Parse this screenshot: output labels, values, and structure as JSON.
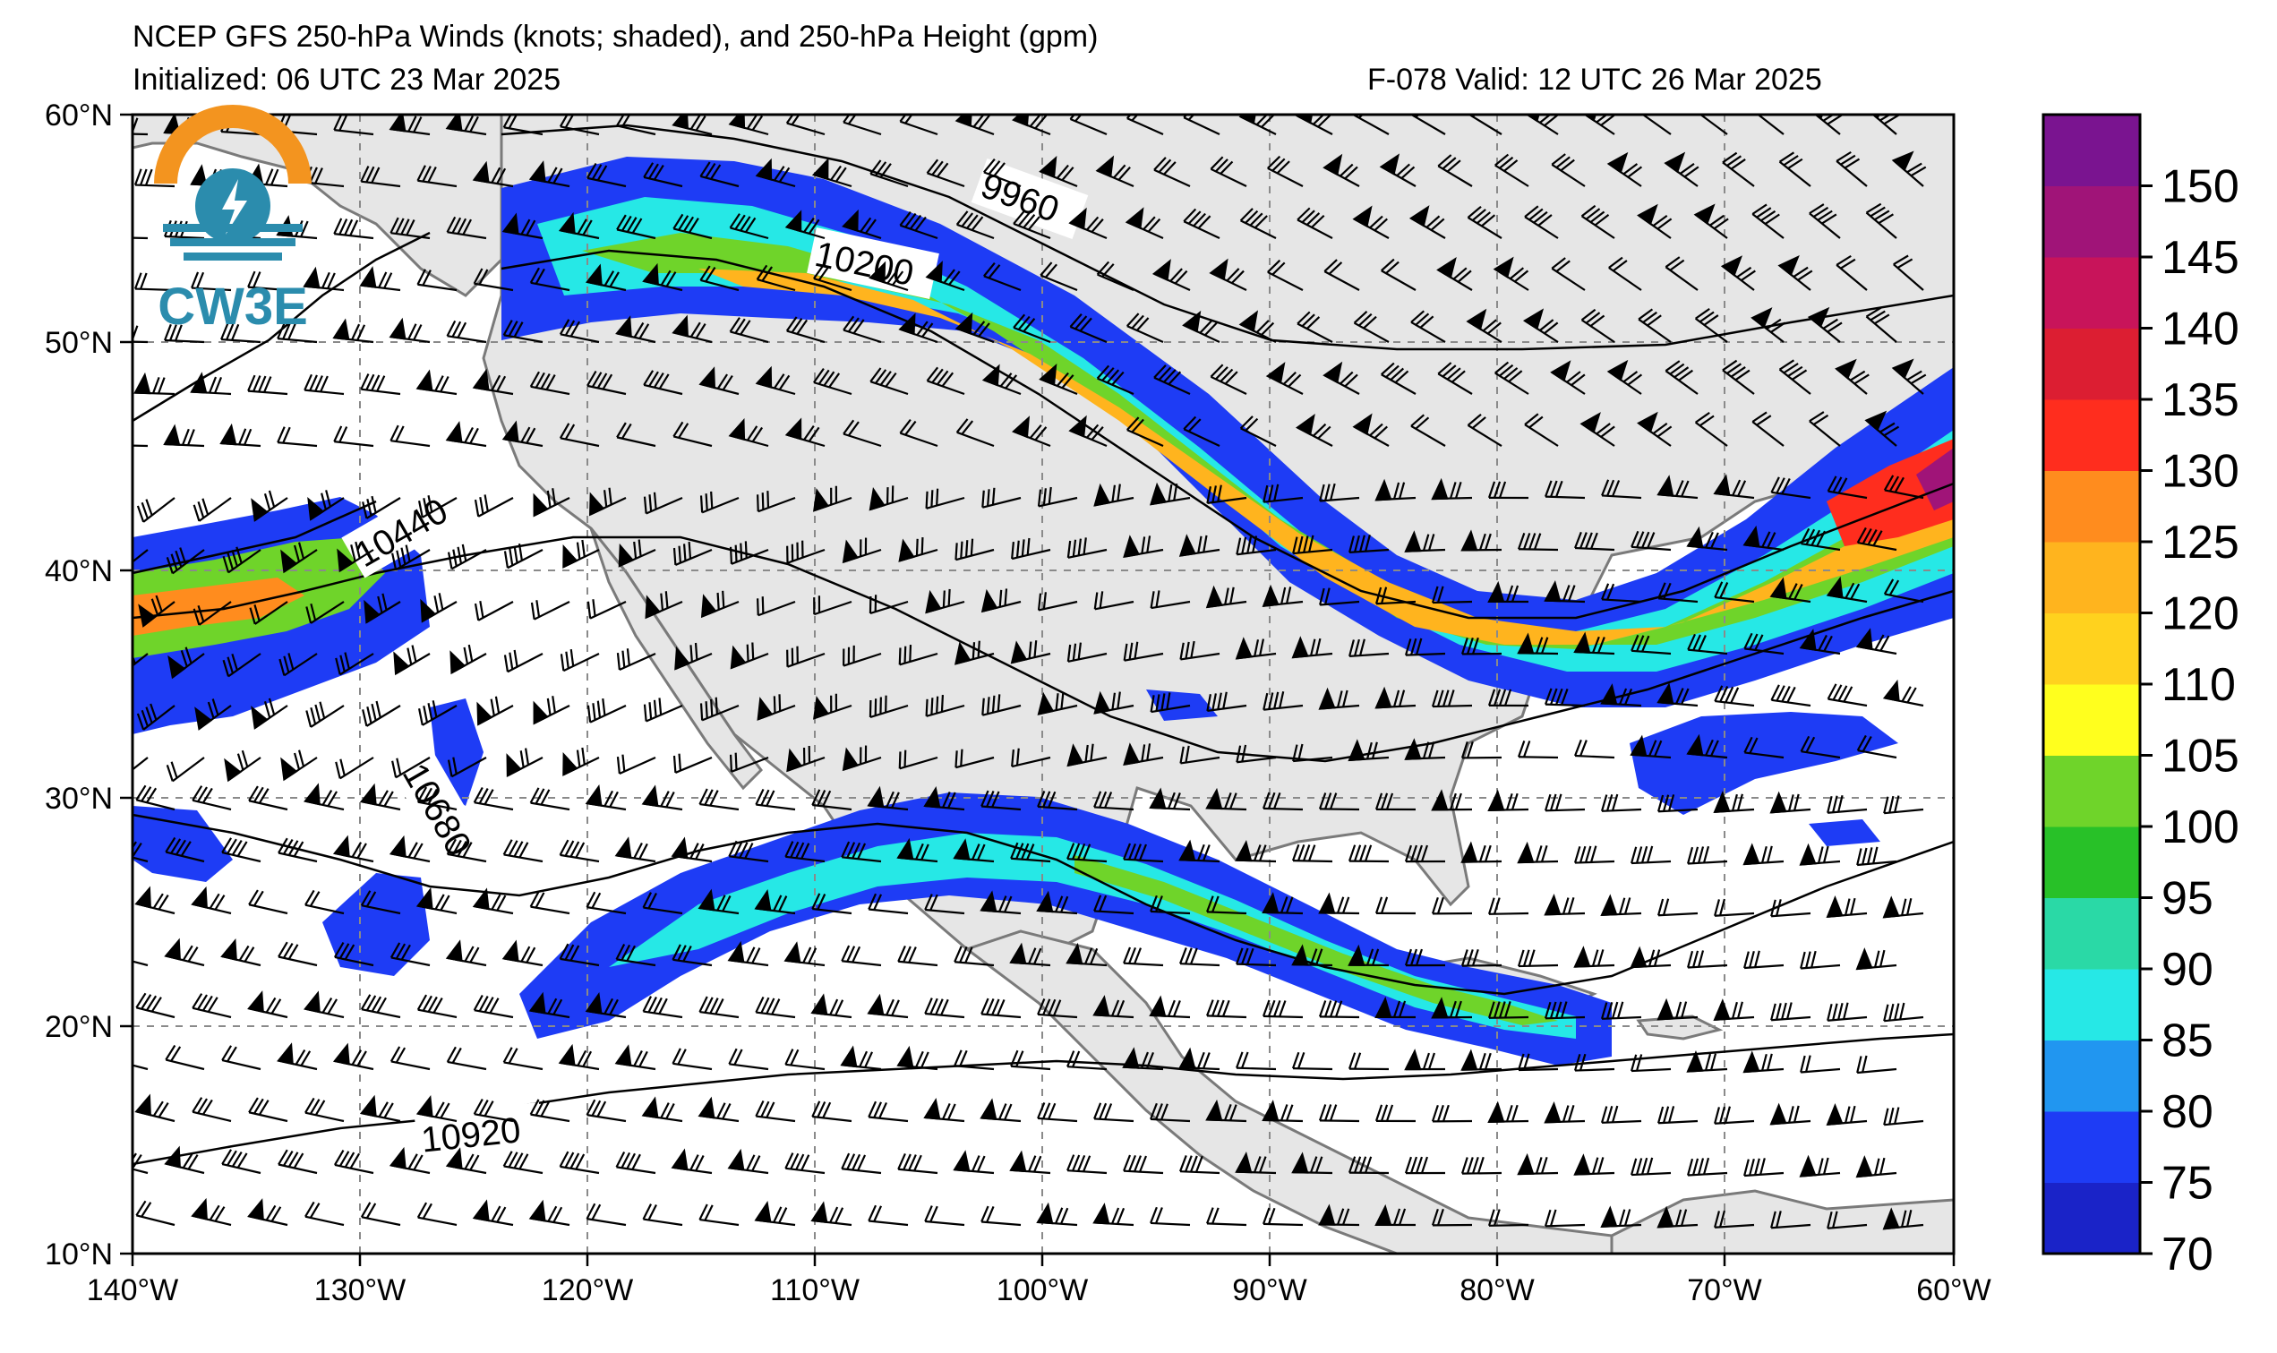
{
  "header": {
    "title": "NCEP GFS 250-hPa Winds (knots; shaded), and 250-hPa Height (gpm)",
    "initialized": "Initialized: 06 UTC 23 Mar 2025",
    "forecast": "F-078  Valid: 12 UTC 26 Mar 2025"
  },
  "logo": {
    "text": "CW3E",
    "colors": {
      "orange": "#f3941f",
      "teal": "#2b8cad"
    }
  },
  "map": {
    "lon_ticks": [
      "140°W",
      "130°W",
      "120°W",
      "110°W",
      "100°W",
      "90°W",
      "80°W",
      "70°W",
      "60°W"
    ],
    "lat_ticks": [
      "60°N",
      "50°N",
      "40°N",
      "30°N",
      "20°N",
      "10°N"
    ],
    "lon_range": [
      -140,
      -60
    ],
    "lat_range": [
      10,
      60
    ],
    "land_color": "#e6e6e6",
    "grid": "dashed"
  },
  "height_contours": {
    "labels": [
      "9960",
      "10200",
      "10440",
      "10680",
      "10920"
    ]
  },
  "colorbar": {
    "levels": [
      "70",
      "75",
      "80",
      "85",
      "90",
      "95",
      "100",
      "105",
      "110",
      "120",
      "125",
      "130",
      "135",
      "140",
      "145",
      "150"
    ],
    "colors": [
      "#1a23c8",
      "#1e3cf5",
      "#2196f0",
      "#26e8e6",
      "#2ad9a6",
      "#28c128",
      "#6fd42a",
      "#ffff1e",
      "#ffd21e",
      "#ffb41e",
      "#ff8c1e",
      "#ff2d1e",
      "#dc1e32",
      "#c8145a",
      "#a01478",
      "#7a1490"
    ]
  }
}
